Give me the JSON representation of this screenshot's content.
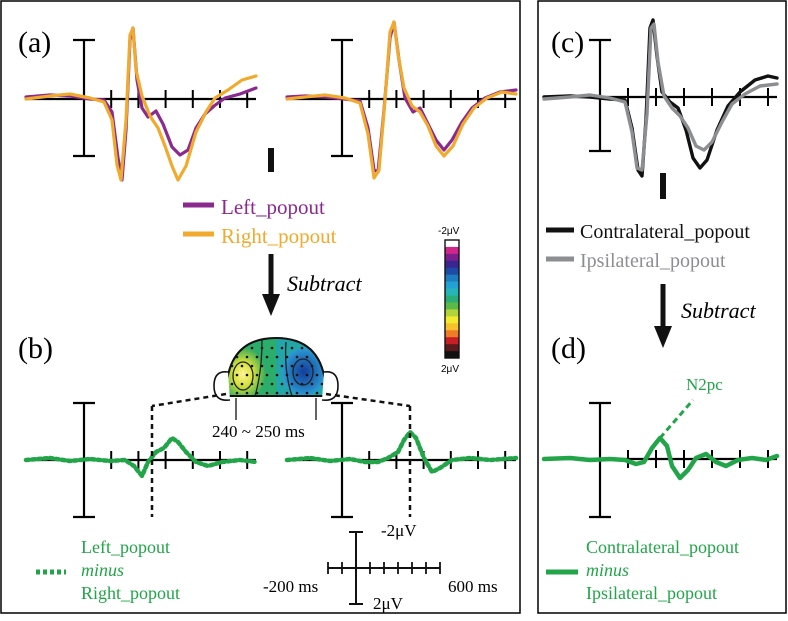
{
  "figure": {
    "panel_labels": {
      "a": "(a)",
      "b": "(b)",
      "c": "(c)",
      "d": "(d)"
    },
    "colors": {
      "left_popout": "#8b2a8e",
      "right_popout": "#f0aa2d",
      "contralateral": "#111111",
      "ipsilateral": "#8c8e92",
      "difference": "#21a548",
      "axes": "#000000"
    },
    "legend_a": {
      "left": "Left_popout",
      "right": "Right_popout"
    },
    "legend_c": {
      "contra": "Contralateral_popout",
      "ipsi": "Ipsilateral_popout"
    },
    "subtract_label": "Subtract",
    "colorbar": {
      "top_label": "-2μV",
      "bottom_label": "2μV",
      "colors": [
        "#ffffff",
        "#d1258a",
        "#7d1e8d",
        "#3a2692",
        "#1f4aa6",
        "#1e7cc0",
        "#22a1d4",
        "#25b5b8",
        "#2bad77",
        "#5bb947",
        "#b3d33b",
        "#f3e930",
        "#f6c32c",
        "#ef7d25",
        "#c61f25",
        "#5c1a1a",
        "#111111"
      ]
    },
    "topomap_caption": "240 ~ 250 ms",
    "n2pc_label": "N2pc",
    "legend_b": {
      "line1": "Left_popout",
      "line2": "minus",
      "line3": "Right_popout"
    },
    "legend_d": {
      "line1": "Contralateral_popout",
      "line2": "minus",
      "line3": "Ipsilateral_popout"
    },
    "scale_bar": {
      "y_top": "-2μV",
      "y_bottom": "2μV",
      "x_left": "-200 ms",
      "x_right": "600 ms"
    }
  }
}
